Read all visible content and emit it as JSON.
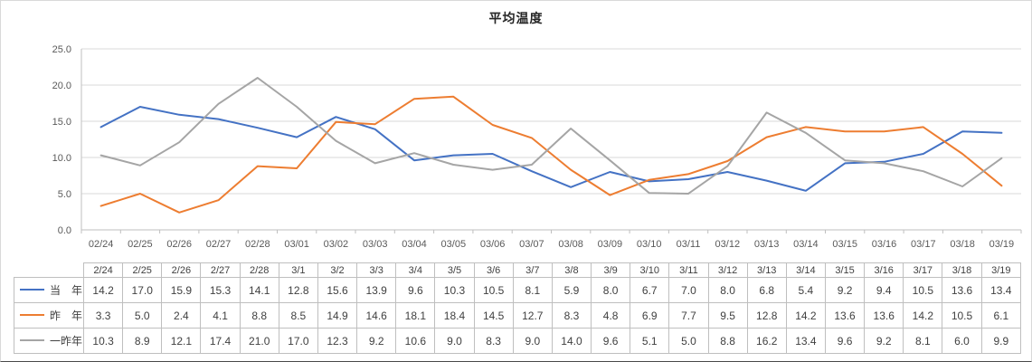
{
  "chart_data": {
    "type": "line",
    "title": "平均温度",
    "categories": [
      "02/24",
      "02/25",
      "02/26",
      "02/27",
      "02/28",
      "03/01",
      "03/02",
      "03/03",
      "03/04",
      "03/05",
      "03/06",
      "03/07",
      "03/08",
      "03/09",
      "03/10",
      "03/11",
      "03/12",
      "03/13",
      "03/14",
      "03/15",
      "03/16",
      "03/17",
      "03/18",
      "03/19"
    ],
    "table_categories": [
      "2/24",
      "2/25",
      "2/26",
      "2/27",
      "2/28",
      "3/1",
      "3/2",
      "3/3",
      "3/4",
      "3/5",
      "3/6",
      "3/7",
      "3/8",
      "3/9",
      "3/10",
      "3/11",
      "3/12",
      "3/13",
      "3/14",
      "3/15",
      "3/16",
      "3/17",
      "3/18",
      "3/19"
    ],
    "series": [
      {
        "key": "this-year",
        "name": "当　年",
        "color": "#4472C4",
        "values": [
          14.2,
          17.0,
          15.9,
          15.3,
          14.1,
          12.8,
          15.6,
          13.9,
          9.6,
          10.3,
          10.5,
          8.1,
          5.9,
          8.0,
          6.7,
          7.0,
          8.0,
          6.8,
          5.4,
          9.2,
          9.4,
          10.5,
          13.6,
          13.4
        ]
      },
      {
        "key": "last-year",
        "name": "昨　年",
        "color": "#ED7D31",
        "values": [
          3.3,
          5.0,
          2.4,
          4.1,
          8.8,
          8.5,
          14.9,
          14.6,
          18.1,
          18.4,
          14.5,
          12.7,
          8.3,
          4.8,
          6.9,
          7.7,
          9.5,
          12.8,
          14.2,
          13.6,
          13.6,
          14.2,
          10.5,
          6.1
        ]
      },
      {
        "key": "two-years-ago",
        "name": "一昨年",
        "color": "#A5A5A5",
        "values": [
          10.3,
          8.9,
          12.1,
          17.4,
          21.0,
          17.0,
          12.3,
          9.2,
          10.6,
          9.0,
          8.3,
          9.0,
          14.0,
          9.6,
          5.1,
          5.0,
          8.8,
          16.2,
          13.4,
          9.6,
          9.2,
          8.1,
          6.0,
          9.9
        ]
      }
    ],
    "ylim": [
      0,
      25
    ],
    "ytick_step": 5,
    "ytick_labels": [
      "0.0",
      "5.0",
      "10.0",
      "15.0",
      "20.0",
      "25.0"
    ],
    "grid": true,
    "legend_position": "table-left",
    "colors": {
      "gridline": "#D9D9D9",
      "axis": "#BFBFBF",
      "tick": "#BFBFBF",
      "axis_text": "#595959",
      "table_border": "#BFBFBF",
      "table_text": "#404040"
    }
  }
}
